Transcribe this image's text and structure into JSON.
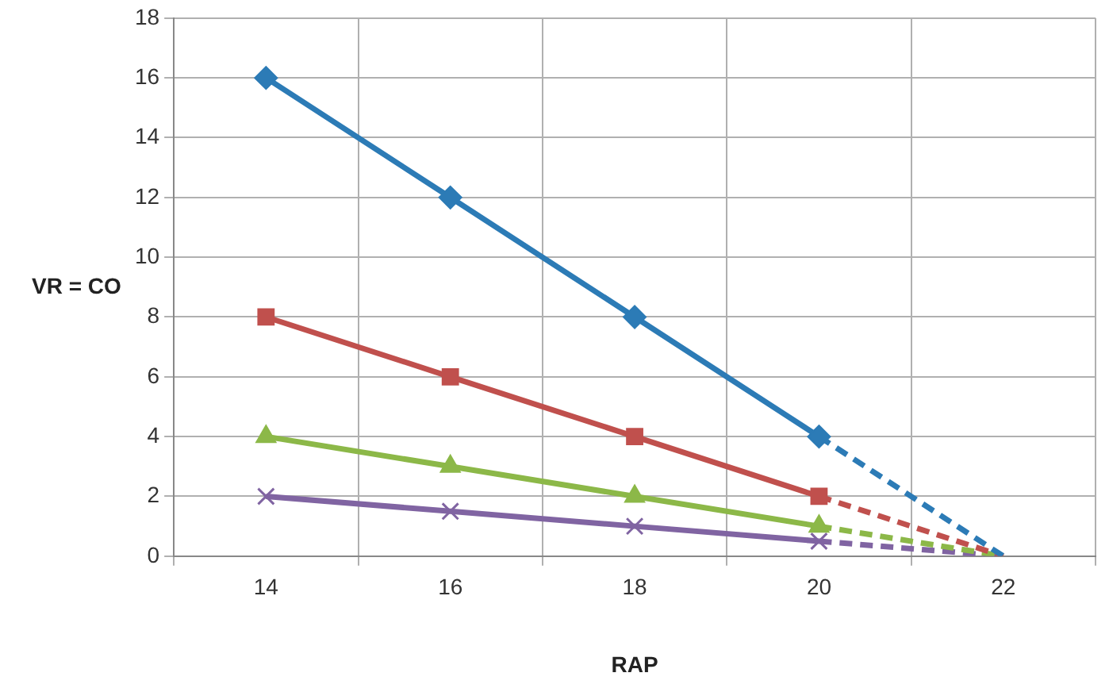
{
  "chart_data": {
    "type": "line",
    "xlabel": "RAP",
    "ylabel": "VR = CO",
    "categories": [
      "14",
      "16",
      "18",
      "20",
      "22"
    ],
    "series": [
      {
        "color": "#2c7bb6",
        "marker": "diamond",
        "line_style": "solid",
        "values": [
          16,
          12,
          8,
          4,
          null
        ]
      },
      {
        "color": "#2c7bb6",
        "line_style": "dashed",
        "values": [
          null,
          null,
          null,
          4,
          0
        ]
      },
      {
        "color": "#c0504d",
        "marker": "square",
        "line_style": "solid",
        "values": [
          8,
          6,
          4,
          2,
          null
        ]
      },
      {
        "color": "#c0504d",
        "line_style": "dashed",
        "values": [
          null,
          null,
          null,
          2,
          0
        ]
      },
      {
        "color": "#8cb848",
        "marker": "triangle",
        "line_style": "solid",
        "values": [
          4,
          3,
          2,
          1,
          null
        ]
      },
      {
        "color": "#8cb848",
        "line_style": "dashed",
        "values": [
          null,
          null,
          null,
          1,
          0
        ]
      },
      {
        "color": "#8064a2",
        "marker": "cross",
        "line_style": "solid",
        "values": [
          2,
          1.5,
          1,
          0.5,
          null
        ]
      },
      {
        "color": "#8064a2",
        "line_style": "dashed",
        "values": [
          null,
          null,
          null,
          0.5,
          0
        ]
      }
    ],
    "ylim": [
      0,
      18
    ],
    "yticks": [
      0,
      2,
      4,
      6,
      8,
      10,
      12,
      14,
      16,
      18
    ],
    "grid": true,
    "legend": false
  }
}
